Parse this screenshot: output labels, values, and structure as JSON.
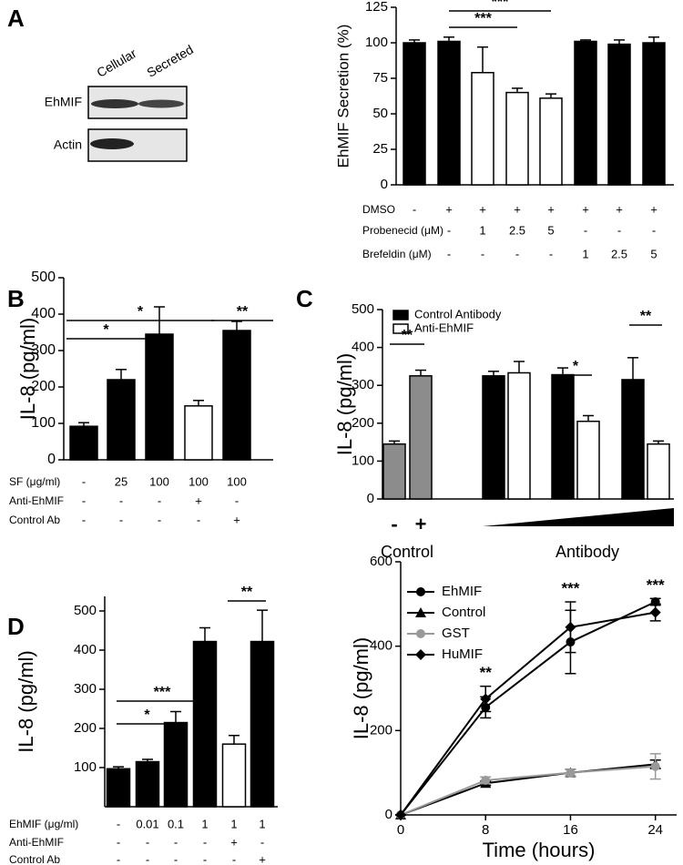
{
  "panels": [
    "A",
    "B",
    "C",
    "D"
  ],
  "blot": {
    "lanes": [
      "Cellular",
      "Secreted"
    ],
    "rows": [
      "EhMIF",
      "Actin"
    ]
  },
  "chart_data": [
    {
      "type": "bar",
      "ylabel": "EhMIF Secretion (%)",
      "values": [
        100,
        101,
        79,
        65,
        61,
        101,
        99,
        100
      ],
      "errors": [
        2,
        3,
        18,
        3,
        3,
        1,
        3,
        4
      ],
      "colors": [
        "#000000",
        "#000000",
        "#ffffff",
        "#ffffff",
        "#ffffff",
        "#000000",
        "#000000",
        "#000000"
      ],
      "ylim": [
        0,
        125
      ],
      "yticks": [
        0,
        25,
        50,
        75,
        100,
        125
      ],
      "significance": [
        "***",
        "***"
      ],
      "conditions": [
        {
          "label": "DMSO",
          "values": [
            "-",
            "+",
            "+",
            "+",
            "+",
            "+",
            "+",
            "+"
          ]
        },
        {
          "label": "Probenecid (μM)",
          "values": [
            null,
            "-",
            "1",
            "2.5",
            "5",
            "-",
            "-",
            "-"
          ]
        },
        {
          "label": "Brefeldin (μM)",
          "values": [
            null,
            "-",
            "-",
            "-",
            "-",
            "1",
            "2.5",
            "5"
          ]
        }
      ]
    },
    {
      "type": "bar",
      "ylabel": "IL-8 (pg/ml)",
      "values": [
        92,
        220,
        345,
        148,
        355
      ],
      "errors": [
        10,
        28,
        75,
        15,
        25
      ],
      "colors": [
        "#000000",
        "#000000",
        "#000000",
        "#ffffff",
        "#000000"
      ],
      "ylim": [
        0,
        500
      ],
      "yticks": [
        0,
        100,
        200,
        300,
        400,
        500
      ],
      "significance": [
        "*",
        "*",
        "**"
      ],
      "conditions": [
        {
          "label": "SF (μg/ml)",
          "values": [
            "-",
            "25",
            "100",
            "100",
            "100"
          ]
        },
        {
          "label": "Anti-EhMIF",
          "values": [
            "-",
            "-",
            "-",
            "+",
            "-"
          ]
        },
        {
          "label": "Control Ab",
          "values": [
            "-",
            "-",
            "-",
            "-",
            "+"
          ]
        }
      ]
    },
    {
      "type": "grouped_bar",
      "ylabel": "IL-8 (pg/ml)",
      "control": {
        "values": [
          145,
          325
        ],
        "errors": [
          8,
          15
        ],
        "color": "#8c8c8c",
        "labels": [
          "-",
          "+"
        ]
      },
      "series": [
        {
          "name": "Control Antibody",
          "color": "#000000",
          "values": [
            325,
            328,
            315
          ],
          "errors": [
            12,
            18,
            58
          ]
        },
        {
          "name": "Anti-EhMIF",
          "color": "#ffffff",
          "values": [
            333,
            205,
            145
          ],
          "errors": [
            30,
            15,
            8
          ]
        }
      ],
      "group_labels": [
        "Control",
        "Antibody"
      ],
      "ylim": [
        0,
        500
      ],
      "yticks": [
        0,
        100,
        200,
        300,
        400,
        500
      ],
      "significance": [
        "**",
        "*",
        "**"
      ]
    },
    {
      "type": "bar",
      "ylabel": "IL-8 (pg/ml)",
      "values": [
        97,
        115,
        215,
        422,
        160,
        422
      ],
      "errors": [
        5,
        6,
        28,
        35,
        22,
        80
      ],
      "colors": [
        "#000000",
        "#000000",
        "#000000",
        "#000000",
        "#ffffff",
        "#000000"
      ],
      "ylim": [
        0,
        500
      ],
      "yticks": [
        100,
        200,
        300,
        400,
        500
      ],
      "significance": [
        "*",
        "***",
        "**"
      ],
      "conditions": [
        {
          "label": "EhMIF (μg/ml)",
          "values": [
            "-",
            "0.01",
            "0.1",
            "1",
            "1",
            "1"
          ]
        },
        {
          "label": "Anti-EhMIF",
          "values": [
            "-",
            "-",
            "-",
            "-",
            "+",
            "-"
          ]
        },
        {
          "label": "Control Ab",
          "values": [
            "-",
            "-",
            "-",
            "-",
            "-",
            "+"
          ]
        }
      ]
    },
    {
      "type": "line",
      "xlabel": "Time (hours)",
      "ylabel": "IL-8 (pg/ml)",
      "x": [
        0,
        8,
        16,
        24
      ],
      "xlim": [
        0,
        26
      ],
      "xticks": [
        0,
        8,
        16,
        24
      ],
      "ylim": [
        0,
        600
      ],
      "yticks": [
        0,
        200,
        400,
        600
      ],
      "series": [
        {
          "name": "EhMIF",
          "color": "#000000",
          "marker": "circle",
          "values": [
            0,
            255,
            410,
            505
          ],
          "errors": [
            0,
            25,
            75,
            8
          ]
        },
        {
          "name": "Control",
          "color": "#000000",
          "marker": "triangle",
          "values": [
            0,
            75,
            100,
            120
          ],
          "errors": [
            0,
            5,
            8,
            10
          ]
        },
        {
          "name": "GST",
          "color": "#999999",
          "marker": "circle",
          "values": [
            0,
            82,
            100,
            115
          ],
          "errors": [
            0,
            8,
            8,
            30
          ]
        },
        {
          "name": "HuMIF",
          "color": "#000000",
          "marker": "diamond",
          "values": [
            0,
            275,
            445,
            480
          ],
          "errors": [
            0,
            30,
            60,
            20
          ]
        }
      ],
      "annotations": [
        {
          "x": 8,
          "label": "**"
        },
        {
          "x": 16,
          "label": "***"
        },
        {
          "x": 24,
          "label": "***"
        }
      ]
    }
  ]
}
